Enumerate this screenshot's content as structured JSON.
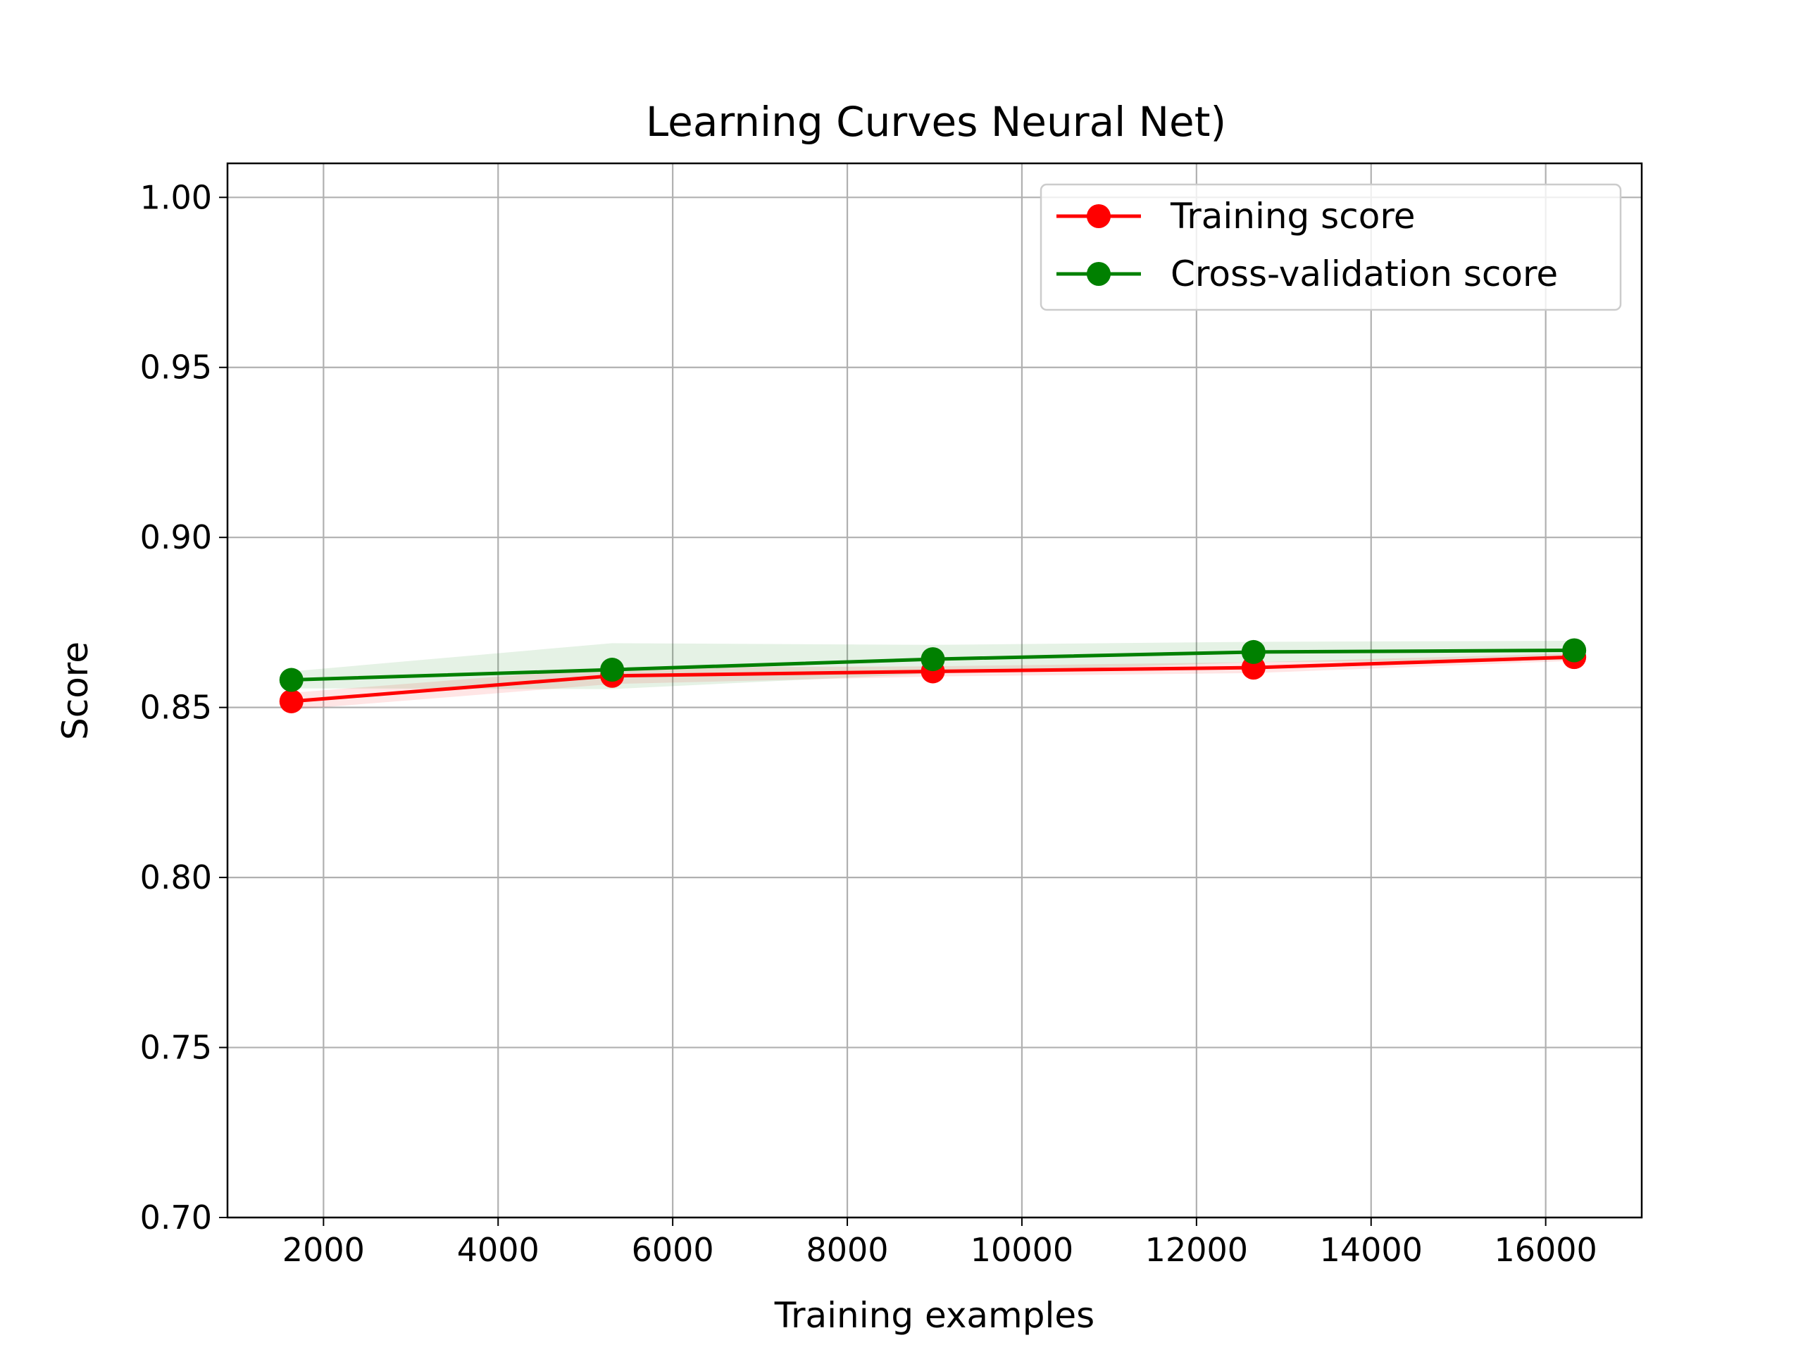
{
  "chart_data": {
    "type": "line",
    "title": "Learning Curves Neural Net)",
    "xlabel": "Training examples",
    "ylabel": "Score",
    "xlim": [
      900,
      17100
    ],
    "ylim": [
      0.7,
      1.01
    ],
    "xticks": [
      2000,
      4000,
      6000,
      8000,
      10000,
      12000,
      14000,
      16000
    ],
    "xtick_labels": [
      "2000",
      "4000",
      "6000",
      "8000",
      "10000",
      "12000",
      "14000",
      "16000"
    ],
    "yticks": [
      0.7,
      0.75,
      0.8,
      0.85,
      0.9,
      0.95,
      1.0
    ],
    "ytick_labels": [
      "0.70",
      "0.75",
      "0.80",
      "0.85",
      "0.90",
      "0.95",
      "1.00"
    ],
    "grid": true,
    "legend_position": "top-right",
    "x": [
      1632,
      5306,
      8980,
      12653,
      16327
    ],
    "series": [
      {
        "name": "Training score",
        "color": "#ff0000",
        "values": [
          0.8518,
          0.8593,
          0.8606,
          0.8617,
          0.8648
        ],
        "band_lower": [
          0.8493,
          0.8569,
          0.8591,
          0.8601,
          0.8637
        ],
        "band_upper": [
          0.8543,
          0.8617,
          0.8621,
          0.8633,
          0.8659
        ]
      },
      {
        "name": "Cross-validation score",
        "color": "#008000",
        "values": [
          0.8581,
          0.8611,
          0.8642,
          0.8663,
          0.8668
        ],
        "band_lower": [
          0.8556,
          0.8554,
          0.86,
          0.8633,
          0.864
        ],
        "band_upper": [
          0.8606,
          0.8689,
          0.8684,
          0.8693,
          0.8696
        ]
      }
    ]
  }
}
